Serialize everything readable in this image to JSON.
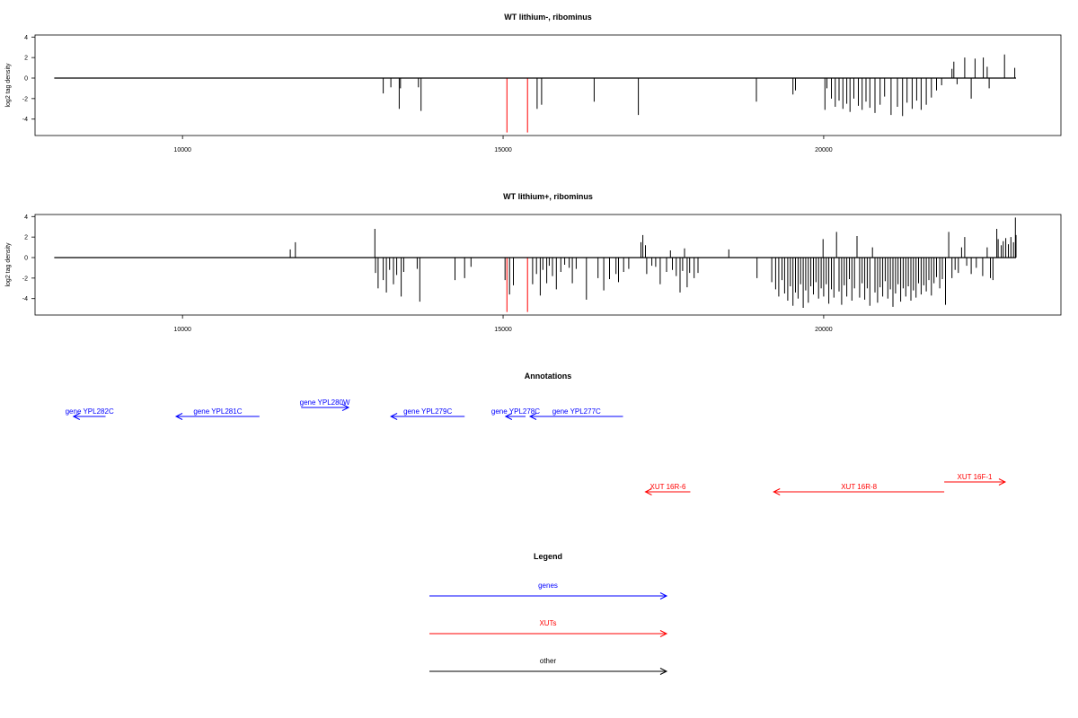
{
  "chart_data": [
    {
      "type": "bar",
      "title": "WT lithium-, ribominus",
      "ylabel": "log2 tag density",
      "xlim": [
        7700,
        23700
      ],
      "ylim": [
        -5.6,
        4.2
      ],
      "xticks": [
        10000,
        15000,
        20000
      ],
      "yticks": [
        4,
        2,
        0,
        -2,
        -4
      ],
      "baseline": [
        8000,
        23000
      ],
      "series": [
        {
          "color": "#000000",
          "bars": [
            [
              13130,
              -1.5
            ],
            [
              13250,
              -0.9
            ],
            [
              13380,
              -3.0
            ],
            [
              13400,
              -1.0
            ],
            [
              13680,
              -0.9
            ],
            [
              13720,
              -3.2
            ],
            [
              15530,
              -3.0
            ],
            [
              15600,
              -2.6
            ],
            [
              16420,
              -2.3
            ],
            [
              17110,
              -3.6
            ],
            [
              18950,
              -2.3
            ],
            [
              19520,
              -1.6
            ],
            [
              19560,
              -1.2
            ],
            [
              20020,
              -3.1
            ],
            [
              20050,
              -1.0
            ],
            [
              20120,
              -2.0
            ],
            [
              20180,
              -2.8
            ],
            [
              20240,
              -2.2
            ],
            [
              20300,
              -3.0
            ],
            [
              20360,
              -2.5
            ],
            [
              20410,
              -3.3
            ],
            [
              20470,
              -2.0
            ],
            [
              20540,
              -2.7
            ],
            [
              20600,
              -3.1
            ],
            [
              20660,
              -2.3
            ],
            [
              20720,
              -2.9
            ],
            [
              20800,
              -3.4
            ],
            [
              20880,
              -2.6
            ],
            [
              20950,
              -1.8
            ],
            [
              21050,
              -3.6
            ],
            [
              21150,
              -2.8
            ],
            [
              21230,
              -3.7
            ],
            [
              21300,
              -2.4
            ],
            [
              21380,
              -3.0
            ],
            [
              21450,
              -2.2
            ],
            [
              21520,
              -3.1
            ],
            [
              21600,
              -2.6
            ],
            [
              21680,
              -1.9
            ],
            [
              21760,
              -1.2
            ],
            [
              21840,
              -0.7
            ],
            [
              22000,
              0.9
            ],
            [
              22030,
              1.6
            ],
            [
              22080,
              -0.6
            ],
            [
              22200,
              2.0
            ],
            [
              22300,
              -2.0
            ],
            [
              22360,
              1.9
            ],
            [
              22490,
              2.0
            ],
            [
              22550,
              1.1
            ],
            [
              22580,
              -1.0
            ],
            [
              22820,
              2.3
            ],
            [
              22980,
              1.0
            ]
          ]
        },
        {
          "color": "#ff0000",
          "bars": [
            [
              15060,
              -5.3
            ],
            [
              15380,
              -5.3
            ]
          ]
        }
      ]
    },
    {
      "type": "bar",
      "title": "WT lithium+, ribominus",
      "ylabel": "log2 tag density",
      "xlim": [
        7700,
        23700
      ],
      "ylim": [
        -5.6,
        4.2
      ],
      "xticks": [
        10000,
        15000,
        20000
      ],
      "yticks": [
        4,
        2,
        0,
        -2,
        -4
      ],
      "baseline": [
        8000,
        23000
      ],
      "series": [
        {
          "color": "#000000",
          "bars": [
            [
              11680,
              0.8
            ],
            [
              11760,
              1.5
            ],
            [
              13000,
              2.8
            ],
            [
              13010,
              -1.5
            ],
            [
              13050,
              -3.0
            ],
            [
              13130,
              -2.2
            ],
            [
              13180,
              -3.4
            ],
            [
              13230,
              -1.2
            ],
            [
              13290,
              -2.6
            ],
            [
              13340,
              -1.7
            ],
            [
              13410,
              -3.8
            ],
            [
              13450,
              -1.4
            ],
            [
              13660,
              -1.1
            ],
            [
              13700,
              -4.3
            ],
            [
              14250,
              -2.2
            ],
            [
              14400,
              -2.0
            ],
            [
              14500,
              -0.9
            ],
            [
              15030,
              -2.2
            ],
            [
              15100,
              -3.6
            ],
            [
              15160,
              -2.7
            ],
            [
              15460,
              -2.6
            ],
            [
              15520,
              -1.6
            ],
            [
              15580,
              -3.7
            ],
            [
              15620,
              -1.2
            ],
            [
              15680,
              -2.5
            ],
            [
              15720,
              -0.8
            ],
            [
              15770,
              -1.8
            ],
            [
              15830,
              -3.1
            ],
            [
              15900,
              -1.4
            ],
            [
              15960,
              -0.7
            ],
            [
              16030,
              -1.0
            ],
            [
              16080,
              -2.5
            ],
            [
              16140,
              -1.1
            ],
            [
              16300,
              -4.1
            ],
            [
              16480,
              -2.0
            ],
            [
              16570,
              -3.2
            ],
            [
              16660,
              -2.1
            ],
            [
              16760,
              -1.6
            ],
            [
              16800,
              -2.4
            ],
            [
              16880,
              -1.4
            ],
            [
              16960,
              -1.1
            ],
            [
              17150,
              1.5
            ],
            [
              17180,
              2.2
            ],
            [
              17220,
              1.2
            ],
            [
              17240,
              -1.6
            ],
            [
              17320,
              -0.8
            ],
            [
              17380,
              -0.9
            ],
            [
              17450,
              -2.6
            ],
            [
              17550,
              -1.4
            ],
            [
              17610,
              0.7
            ],
            [
              17640,
              -1.2
            ],
            [
              17700,
              -1.8
            ],
            [
              17760,
              -3.4
            ],
            [
              17800,
              -1.3
            ],
            [
              17830,
              0.9
            ],
            [
              17870,
              -2.9
            ],
            [
              17910,
              -1.5
            ],
            [
              17980,
              -2.0
            ],
            [
              18040,
              -1.5
            ],
            [
              18520,
              0.8
            ],
            [
              18960,
              -2.0
            ],
            [
              19190,
              -2.4
            ],
            [
              19250,
              -3.1
            ],
            [
              19300,
              -3.8
            ],
            [
              19350,
              -2.2
            ],
            [
              19390,
              -3.5
            ],
            [
              19440,
              -4.2
            ],
            [
              19480,
              -2.8
            ],
            [
              19520,
              -4.7
            ],
            [
              19560,
              -3.4
            ],
            [
              19600,
              -4.0
            ],
            [
              19640,
              -2.6
            ],
            [
              19680,
              -4.9
            ],
            [
              19720,
              -3.2
            ],
            [
              19760,
              -4.4
            ],
            [
              19800,
              -2.8
            ],
            [
              19840,
              -3.6
            ],
            [
              19880,
              -2.4
            ],
            [
              19920,
              -4.0
            ],
            [
              19960,
              -3.0
            ],
            [
              19990,
              1.8
            ],
            [
              20000,
              -3.8
            ],
            [
              20040,
              -2.6
            ],
            [
              20080,
              -4.5
            ],
            [
              20120,
              -3.1
            ],
            [
              20160,
              -3.9
            ],
            [
              20200,
              2.5
            ],
            [
              20240,
              -3.3
            ],
            [
              20280,
              -4.6
            ],
            [
              20320,
              -2.7
            ],
            [
              20360,
              -3.8
            ],
            [
              20400,
              -2.1
            ],
            [
              20440,
              -4.2
            ],
            [
              20480,
              -3.0
            ],
            [
              20520,
              2.1
            ],
            [
              20560,
              -3.9
            ],
            [
              20600,
              -2.5
            ],
            [
              20640,
              -4.1
            ],
            [
              20680,
              -3.0
            ],
            [
              20720,
              -4.7
            ],
            [
              20760,
              1.0
            ],
            [
              20800,
              -3.4
            ],
            [
              20840,
              -4.4
            ],
            [
              20880,
              -2.9
            ],
            [
              20920,
              -3.8
            ],
            [
              20960,
              -2.3
            ],
            [
              21000,
              -4.0
            ],
            [
              21040,
              -3.1
            ],
            [
              21080,
              -4.8
            ],
            [
              21120,
              -3.5
            ],
            [
              21160,
              -2.6
            ],
            [
              21200,
              -4.3
            ],
            [
              21240,
              -3.0
            ],
            [
              21280,
              -3.8
            ],
            [
              21320,
              -2.8
            ],
            [
              21360,
              -4.2
            ],
            [
              21400,
              -3.2
            ],
            [
              21440,
              -3.9
            ],
            [
              21480,
              -2.5
            ],
            [
              21520,
              -3.6
            ],
            [
              21560,
              -2.7
            ],
            [
              21600,
              -3.3
            ],
            [
              21640,
              -2.2
            ],
            [
              21680,
              -3.7
            ],
            [
              21720,
              -2.5
            ],
            [
              21760,
              -1.9
            ],
            [
              21810,
              -3.0
            ],
            [
              21850,
              -2.1
            ],
            [
              21900,
              -4.6
            ],
            [
              21950,
              2.5
            ],
            [
              22000,
              -2.0
            ],
            [
              22050,
              -1.2
            ],
            [
              22100,
              -1.5
            ],
            [
              22150,
              1.0
            ],
            [
              22200,
              2.0
            ],
            [
              22230,
              -0.8
            ],
            [
              22300,
              -1.6
            ],
            [
              22380,
              -1.0
            ],
            [
              22480,
              -1.8
            ],
            [
              22550,
              1.0
            ],
            [
              22600,
              -2.0
            ],
            [
              22640,
              -2.2
            ],
            [
              22700,
              2.8
            ],
            [
              22720,
              1.8
            ],
            [
              22770,
              1.2
            ],
            [
              22800,
              1.6
            ],
            [
              22840,
              1.9
            ],
            [
              22880,
              1.3
            ],
            [
              22920,
              2.0
            ],
            [
              22960,
              1.5
            ],
            [
              22990,
              3.9
            ],
            [
              23000,
              2.2
            ]
          ]
        },
        {
          "color": "#ff0000",
          "bars": [
            [
              15060,
              -5.3
            ],
            [
              15380,
              -5.3
            ]
          ]
        }
      ]
    }
  ],
  "annotations": {
    "title": "Annotations",
    "xlim": [
      7700,
      23700
    ],
    "features": [
      {
        "label": "gene YPL282C",
        "start": 8300,
        "end": 8800,
        "strand": "-",
        "row": 1,
        "color": "#0000ff"
      },
      {
        "label": "gene YPL281C",
        "start": 9900,
        "end": 11200,
        "strand": "-",
        "row": 1,
        "color": "#0000ff"
      },
      {
        "label": "gene YPL280W",
        "start": 11850,
        "end": 12590,
        "strand": "+",
        "row": 0,
        "color": "#0000ff"
      },
      {
        "label": "gene YPL279C",
        "start": 13250,
        "end": 14400,
        "strand": "-",
        "row": 1,
        "color": "#0000ff"
      },
      {
        "label": "gene YPL278C",
        "start": 15040,
        "end": 15350,
        "strand": "-",
        "row": 1,
        "color": "#0000ff"
      },
      {
        "label": "gene YPL277C",
        "start": 15420,
        "end": 16870,
        "strand": "-",
        "row": 1,
        "color": "#0000ff"
      },
      {
        "label": "XUT 16R-6",
        "start": 17220,
        "end": 17920,
        "strand": "-",
        "row": 2,
        "color": "#ff0000"
      },
      {
        "label": "XUT 16R-8",
        "start": 19220,
        "end": 21880,
        "strand": "-",
        "row": 2,
        "color": "#ff0000"
      },
      {
        "label": "XUT 16F-1",
        "start": 21880,
        "end": 22830,
        "strand": "+",
        "row": 3,
        "color": "#ff0000"
      }
    ]
  },
  "legend": {
    "title": "Legend",
    "items": [
      {
        "label": "genes",
        "color": "#0000ff"
      },
      {
        "label": "XUTs",
        "color": "#ff0000"
      },
      {
        "label": "other",
        "color": "#000000"
      }
    ]
  }
}
